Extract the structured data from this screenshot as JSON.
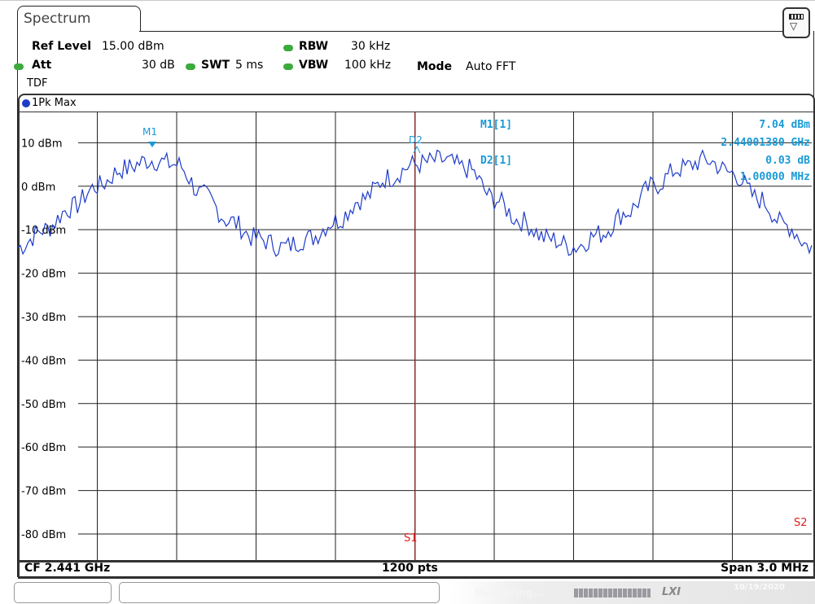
{
  "tab": {
    "title": "Spectrum"
  },
  "settings": {
    "ref_level_label": "Ref Level",
    "ref_level_value": "15.00 dBm",
    "att_label": "Att",
    "att_value": "30 dB",
    "swt_label": "SWT",
    "swt_value": "5 ms",
    "rbw_label": "RBW",
    "rbw_value": "30 kHz",
    "vbw_label": "VBW",
    "vbw_value": "100 kHz",
    "mode_label": "Mode",
    "mode_value": "Auto FFT",
    "tdf": "TDF",
    "indicator_color": "#3caa3c"
  },
  "trace": {
    "label": "1Pk Max",
    "color": "#1e3cc8"
  },
  "markers": {
    "m1_label": "M1[1]",
    "m1_level": "7.04 dBm",
    "m1_freq": "2.44001380 GHz",
    "d2_label": "D2[1]",
    "d2_level": "0.03 dB",
    "d2_freq": "1.00000 MHz",
    "m1_tag": "M1",
    "d2_tag": "D2",
    "color": "#1a9ad6"
  },
  "lines": {
    "s1": "S1",
    "s2": "S2",
    "color": "#e02020"
  },
  "footer": {
    "cf": "CF 2.441 GHz",
    "pts": "1200 pts",
    "span": "Span 3.0 MHz"
  },
  "status": {
    "measuring": "Measuring...",
    "lxi": "LXI",
    "date": "10/19/2020"
  },
  "chart_data": {
    "type": "line",
    "y_tick_labels": [
      "10 dBm",
      "0 dBm",
      "-10 dBm",
      "-20 dBm",
      "-30 dBm",
      "-40 dBm",
      "-50 dBm",
      "-60 dBm",
      "-70 dBm",
      "-80 dBm"
    ],
    "ylim": [
      -86,
      17
    ],
    "xlim": [
      2439.5,
      2442.5
    ],
    "x_unit": "MHz",
    "grid": true,
    "series": [
      {
        "x": [
          2439.5,
          2439.6,
          2439.7,
          2439.8,
          2439.9,
          2440.0,
          2440.1,
          2440.2,
          2440.3,
          2440.4,
          2440.5,
          2440.6,
          2440.7,
          2440.8,
          2440.9,
          2441.0,
          2441.1,
          2441.2,
          2441.3,
          2441.4,
          2441.5,
          2441.6,
          2441.7,
          2441.8,
          2441.9,
          2442.0,
          2442.1,
          2442.2,
          2442.3,
          2442.4,
          2442.5
        ],
        "y": [
          -14,
          -10,
          -5,
          0,
          4,
          6,
          5,
          -2,
          -8,
          -12,
          -14,
          -12,
          -8,
          -3,
          2,
          5,
          6,
          4,
          -3,
          -8,
          -12,
          -14,
          -11,
          -6,
          0,
          4,
          6,
          3,
          -3,
          -9,
          -14
        ]
      }
    ]
  }
}
